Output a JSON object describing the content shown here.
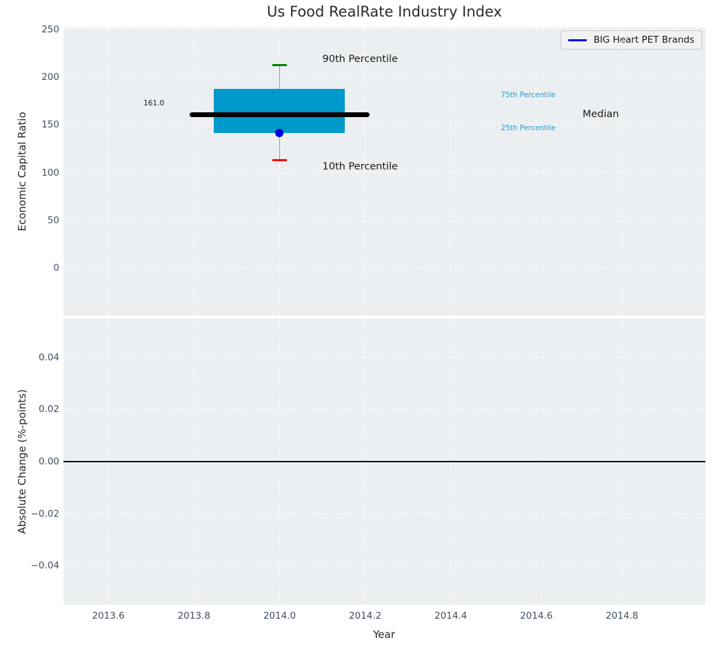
{
  "figure": {
    "title": "Us Food RealRate Industry Index",
    "background": "#ffffff",
    "axes_background": "#eceff1",
    "grid_color": "#ffffff",
    "tick_label_color": "#3f4f63",
    "text_color": "#262626"
  },
  "legend": {
    "label": "BIG Heart PET Brands",
    "line_color": "#0000e0",
    "position": "upper right"
  },
  "chart_data": [
    {
      "type": "boxplot",
      "title": "Us Food RealRate Industry Index",
      "ylabel": "Economic Capital Ratio",
      "xlim": [
        2013.495,
        2014.995
      ],
      "ylim": [
        -49.4,
        252
      ],
      "grid": true,
      "xticks": [
        2013.6,
        2013.8,
        2014.0,
        2014.2,
        2014.4,
        2014.6,
        2014.8
      ],
      "xtick_labels_visible": false,
      "yticks": [
        {
          "v": 0,
          "label": "0"
        },
        {
          "v": 50,
          "label": "50"
        },
        {
          "v": 100,
          "label": "100"
        },
        {
          "v": 150,
          "label": "150"
        },
        {
          "v": 200,
          "label": "200"
        },
        {
          "v": 250,
          "label": "250"
        }
      ],
      "box": {
        "x": 2014.0,
        "p10": 113,
        "p25": 142,
        "median": 161,
        "p75": 188,
        "p90": 213,
        "box_halfwidth": 0.153,
        "median_halfwidth": 0.21,
        "cap_halfwidth": 0.017,
        "fill_color": "#0099cc",
        "median_color": "#000000",
        "whisker_color": "#999999",
        "p90_cap_color": "#008000",
        "p10_cap_color": "#f20000"
      },
      "company_point": {
        "name": "BIG Heart PET Brands",
        "x": 2014.0,
        "y": 142,
        "color": "#0000e0"
      },
      "annotations": [
        {
          "text": "161.0",
          "x": 2013.682,
          "y": 173,
          "color": "#1a1a1a",
          "size": 10.5
        },
        {
          "text": "90th Percentile",
          "x": 2014.1,
          "y": 219,
          "color": "#1a1a1a",
          "size": 14.5
        },
        {
          "text": "10th Percentile",
          "x": 2014.1,
          "y": 106,
          "color": "#1a1a1a",
          "size": 14.5
        },
        {
          "text": "75th Percentile",
          "x": 2014.517,
          "y": 181,
          "color": "#1d9ecf",
          "size": 10.5
        },
        {
          "text": "25th Percentile",
          "x": 2014.517,
          "y": 147,
          "color": "#1d9ecf",
          "size": 10.5
        },
        {
          "text": "Median",
          "x": 2014.708,
          "y": 161,
          "color": "#1a1a1a",
          "size": 14.5
        }
      ]
    },
    {
      "type": "line",
      "xlabel": "Year",
      "ylabel": "Absolute Change (%-points)",
      "xlim": [
        2013.495,
        2014.995
      ],
      "ylim": [
        -0.055,
        0.055
      ],
      "grid": true,
      "xticks": [
        2013.6,
        2013.8,
        2014.0,
        2014.2,
        2014.4,
        2014.6,
        2014.8
      ],
      "xtick_labels": [
        "2013.6",
        "2013.8",
        "2014.0",
        "2014.2",
        "2014.4",
        "2014.6",
        "2014.8"
      ],
      "yticks": [
        {
          "v": -0.04,
          "label": "−0.04"
        },
        {
          "v": -0.02,
          "label": "−0.02"
        },
        {
          "v": 0.0,
          "label": "0.00"
        },
        {
          "v": 0.02,
          "label": "0.02"
        },
        {
          "v": 0.04,
          "label": "0.04"
        }
      ],
      "zero_line": {
        "y": 0.0,
        "color": "#000000"
      },
      "series": []
    }
  ]
}
